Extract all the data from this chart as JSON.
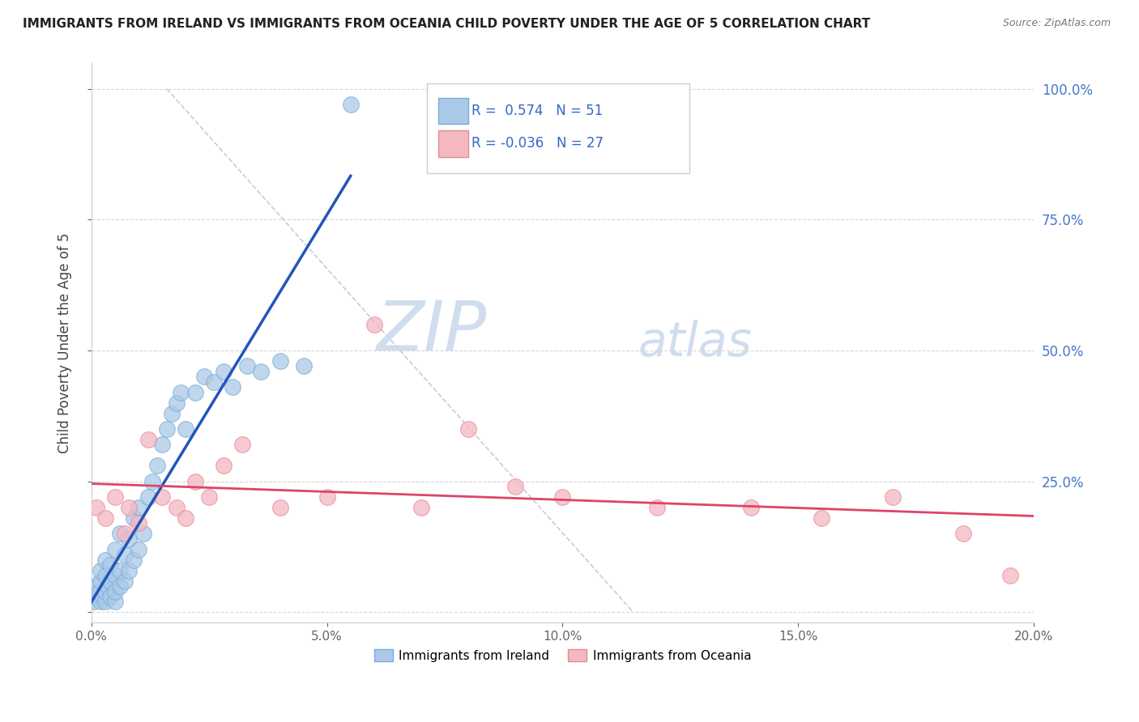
{
  "title": "IMMIGRANTS FROM IRELAND VS IMMIGRANTS FROM OCEANIA CHILD POVERTY UNDER THE AGE OF 5 CORRELATION CHART",
  "source": "Source: ZipAtlas.com",
  "ylabel": "Child Poverty Under the Age of 5",
  "xlim": [
    0.0,
    0.2
  ],
  "ylim": [
    -0.02,
    1.05
  ],
  "xticks": [
    0.0,
    0.05,
    0.1,
    0.15,
    0.2
  ],
  "xtick_labels": [
    "0.0%",
    "5.0%",
    "10.0%",
    "15.0%",
    "20.0%"
  ],
  "yticks": [
    0.0,
    0.25,
    0.5,
    0.75,
    1.0
  ],
  "right_ytick_labels": [
    "",
    "25.0%",
    "50.0%",
    "75.0%",
    "100.0%"
  ],
  "ireland_scatter_color": "#aac9e8",
  "ireland_edge_color": "#7aadd4",
  "oceania_scatter_color": "#f4b8c1",
  "oceania_edge_color": "#e88898",
  "ireland_line_color": "#2255bb",
  "oceania_line_color": "#dd4466",
  "ref_line_color": "#c0c8d0",
  "ireland_R": 0.574,
  "ireland_N": 51,
  "oceania_R": -0.036,
  "oceania_N": 27,
  "watermark_color": "#c8d8ec",
  "ireland_scatter_x": [
    0.0005,
    0.001,
    0.001,
    0.0015,
    0.002,
    0.002,
    0.002,
    0.0025,
    0.003,
    0.003,
    0.003,
    0.003,
    0.0035,
    0.004,
    0.004,
    0.004,
    0.005,
    0.005,
    0.005,
    0.005,
    0.006,
    0.006,
    0.006,
    0.007,
    0.007,
    0.008,
    0.008,
    0.009,
    0.009,
    0.01,
    0.01,
    0.011,
    0.012,
    0.013,
    0.014,
    0.015,
    0.016,
    0.017,
    0.018,
    0.019,
    0.02,
    0.022,
    0.024,
    0.026,
    0.028,
    0.03,
    0.033,
    0.036,
    0.04,
    0.045,
    0.055
  ],
  "ireland_scatter_y": [
    0.02,
    0.03,
    0.05,
    0.04,
    0.02,
    0.06,
    0.08,
    0.03,
    0.02,
    0.04,
    0.07,
    0.1,
    0.05,
    0.03,
    0.06,
    0.09,
    0.02,
    0.04,
    0.07,
    0.12,
    0.05,
    0.08,
    0.15,
    0.06,
    0.11,
    0.08,
    0.14,
    0.1,
    0.18,
    0.12,
    0.2,
    0.15,
    0.22,
    0.25,
    0.28,
    0.32,
    0.35,
    0.38,
    0.4,
    0.42,
    0.35,
    0.42,
    0.45,
    0.44,
    0.46,
    0.43,
    0.47,
    0.46,
    0.48,
    0.47,
    0.97
  ],
  "oceania_scatter_x": [
    0.001,
    0.003,
    0.005,
    0.007,
    0.008,
    0.01,
    0.012,
    0.015,
    0.018,
    0.02,
    0.022,
    0.025,
    0.028,
    0.032,
    0.04,
    0.05,
    0.06,
    0.07,
    0.08,
    0.09,
    0.1,
    0.12,
    0.14,
    0.155,
    0.17,
    0.185,
    0.195
  ],
  "oceania_scatter_y": [
    0.2,
    0.18,
    0.22,
    0.15,
    0.2,
    0.17,
    0.33,
    0.22,
    0.2,
    0.18,
    0.25,
    0.22,
    0.28,
    0.32,
    0.2,
    0.22,
    0.55,
    0.2,
    0.35,
    0.24,
    0.22,
    0.2,
    0.2,
    0.18,
    0.22,
    0.15,
    0.07
  ]
}
